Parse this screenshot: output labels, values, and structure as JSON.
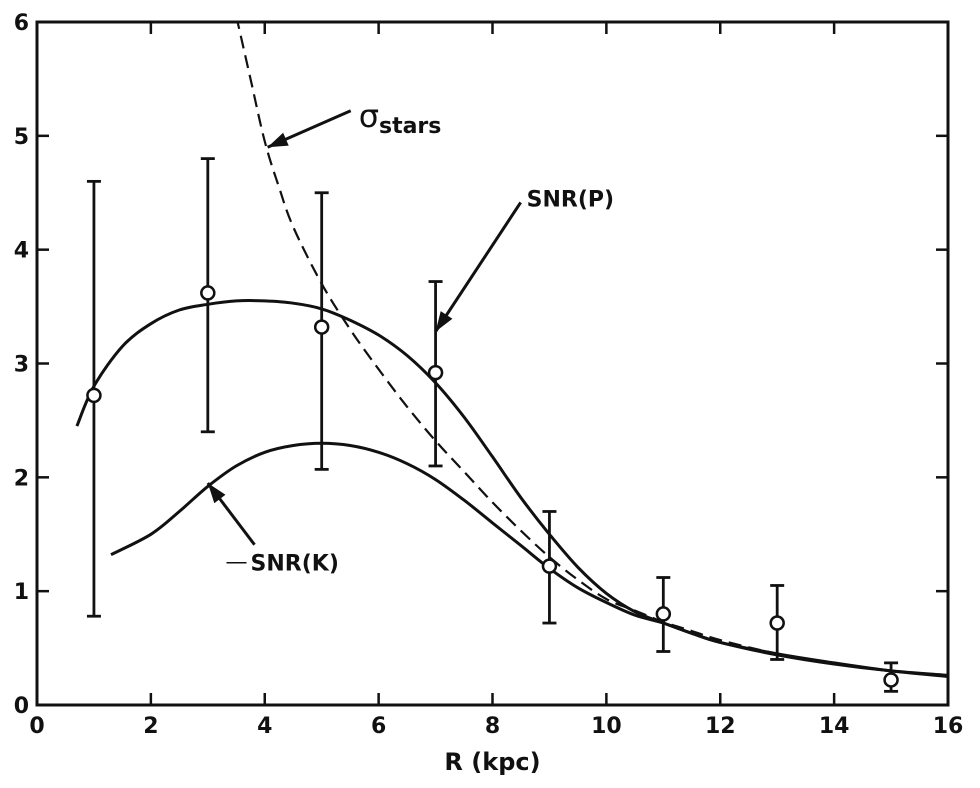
{
  "chart_data": {
    "type": "line",
    "xlabel": "R (kpc)",
    "ylabel": "",
    "xlim": [
      0,
      16
    ],
    "ylim": [
      0,
      6
    ],
    "xticks": [
      0,
      2,
      4,
      6,
      8,
      10,
      12,
      14,
      16
    ],
    "yticks": [
      0,
      1,
      2,
      3,
      4,
      5,
      6
    ],
    "xtick_labels": [
      "0",
      "2",
      "4",
      "6",
      "8",
      "10",
      "12",
      "14",
      "16"
    ],
    "ytick_labels": [
      "0",
      "1",
      "2",
      "3",
      "4",
      "5",
      "6"
    ],
    "grid": false,
    "legend": "none",
    "series": [
      {
        "name": "SNR(P)",
        "style": "solid",
        "x": [
          0.7,
          1.0,
          1.5,
          2.0,
          2.5,
          3.0,
          3.5,
          4.0,
          4.5,
          5.0,
          5.5,
          6.0,
          6.5,
          7.0,
          7.5,
          8.0,
          8.5,
          9.0,
          9.5,
          10.0,
          10.5,
          11.0,
          11.5,
          12.0,
          13.0,
          14.0,
          15.0,
          16.0
        ],
        "y": [
          2.45,
          2.8,
          3.15,
          3.35,
          3.47,
          3.52,
          3.55,
          3.55,
          3.53,
          3.48,
          3.38,
          3.25,
          3.07,
          2.83,
          2.53,
          2.18,
          1.82,
          1.5,
          1.21,
          0.98,
          0.82,
          0.72,
          0.63,
          0.55,
          0.45,
          0.37,
          0.3,
          0.25
        ]
      },
      {
        "name": "SNR(K)",
        "style": "solid",
        "x": [
          1.3,
          2.0,
          2.5,
          3.0,
          3.5,
          4.0,
          4.5,
          5.0,
          5.5,
          6.0,
          6.5,
          7.0,
          7.5,
          8.0,
          8.5,
          9.0,
          9.5,
          10.0,
          10.5,
          11.0,
          11.5,
          12.0,
          13.0,
          14.0,
          15.0,
          16.0
        ],
        "y": [
          1.32,
          1.5,
          1.7,
          1.92,
          2.1,
          2.22,
          2.28,
          2.3,
          2.28,
          2.22,
          2.12,
          1.98,
          1.8,
          1.6,
          1.4,
          1.2,
          1.03,
          0.9,
          0.79,
          0.72,
          0.63,
          0.55,
          0.44,
          0.36,
          0.3,
          0.26
        ]
      },
      {
        "name": "σstars",
        "style": "dashed",
        "x": [
          3.5,
          3.75,
          4.0,
          4.25,
          4.5,
          5.0,
          5.5,
          6.0,
          6.5,
          7.0,
          7.5,
          8.0,
          8.5,
          9.0,
          9.5,
          10.0,
          10.5,
          11.0,
          11.5,
          12.0,
          13.0,
          14.0,
          15.0,
          16.0
        ],
        "y": [
          6.05,
          5.5,
          4.95,
          4.55,
          4.2,
          3.7,
          3.3,
          2.95,
          2.62,
          2.32,
          2.05,
          1.78,
          1.53,
          1.3,
          1.1,
          0.93,
          0.83,
          0.73,
          0.65,
          0.57,
          0.45,
          0.36,
          0.3,
          0.25
        ]
      }
    ],
    "points": {
      "name": "data",
      "x": [
        1,
        3,
        5,
        7,
        9,
        11,
        13,
        15
      ],
      "y": [
        2.72,
        3.62,
        3.32,
        2.92,
        1.22,
        0.8,
        0.72,
        0.22
      ],
      "y_low": [
        0.78,
        2.4,
        2.07,
        2.1,
        0.72,
        0.47,
        0.4,
        0.12
      ],
      "y_high": [
        4.6,
        4.8,
        4.5,
        3.72,
        1.7,
        1.12,
        1.05,
        0.37
      ]
    },
    "annotations": [
      {
        "id": "sigma",
        "text": "σ",
        "sub": "stars",
        "x": 5.65,
        "y": 5.15,
        "arrow_to": [
          4.05,
          4.9
        ]
      },
      {
        "id": "snrp",
        "text": "SNR(P)",
        "x": 8.6,
        "y": 4.45,
        "arrow_to": [
          7.0,
          3.28
        ]
      },
      {
        "id": "snrk",
        "text": "SNR(K)",
        "x": 3.75,
        "y": 1.25,
        "arrow_to": [
          3.0,
          1.95
        ]
      }
    ]
  }
}
